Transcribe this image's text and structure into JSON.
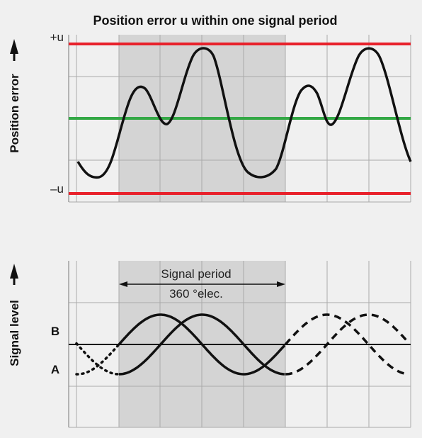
{
  "title": "Position error u within one signal period",
  "top_panel": {
    "axis_label": "Position error",
    "upper_limit": "+u",
    "lower_limit": "–u"
  },
  "bottom_panel": {
    "axis_label": "Signal level",
    "period_label": "Signal period",
    "period_value": "360 °elec.",
    "signal_b": "B",
    "signal_a": "A"
  }
}
